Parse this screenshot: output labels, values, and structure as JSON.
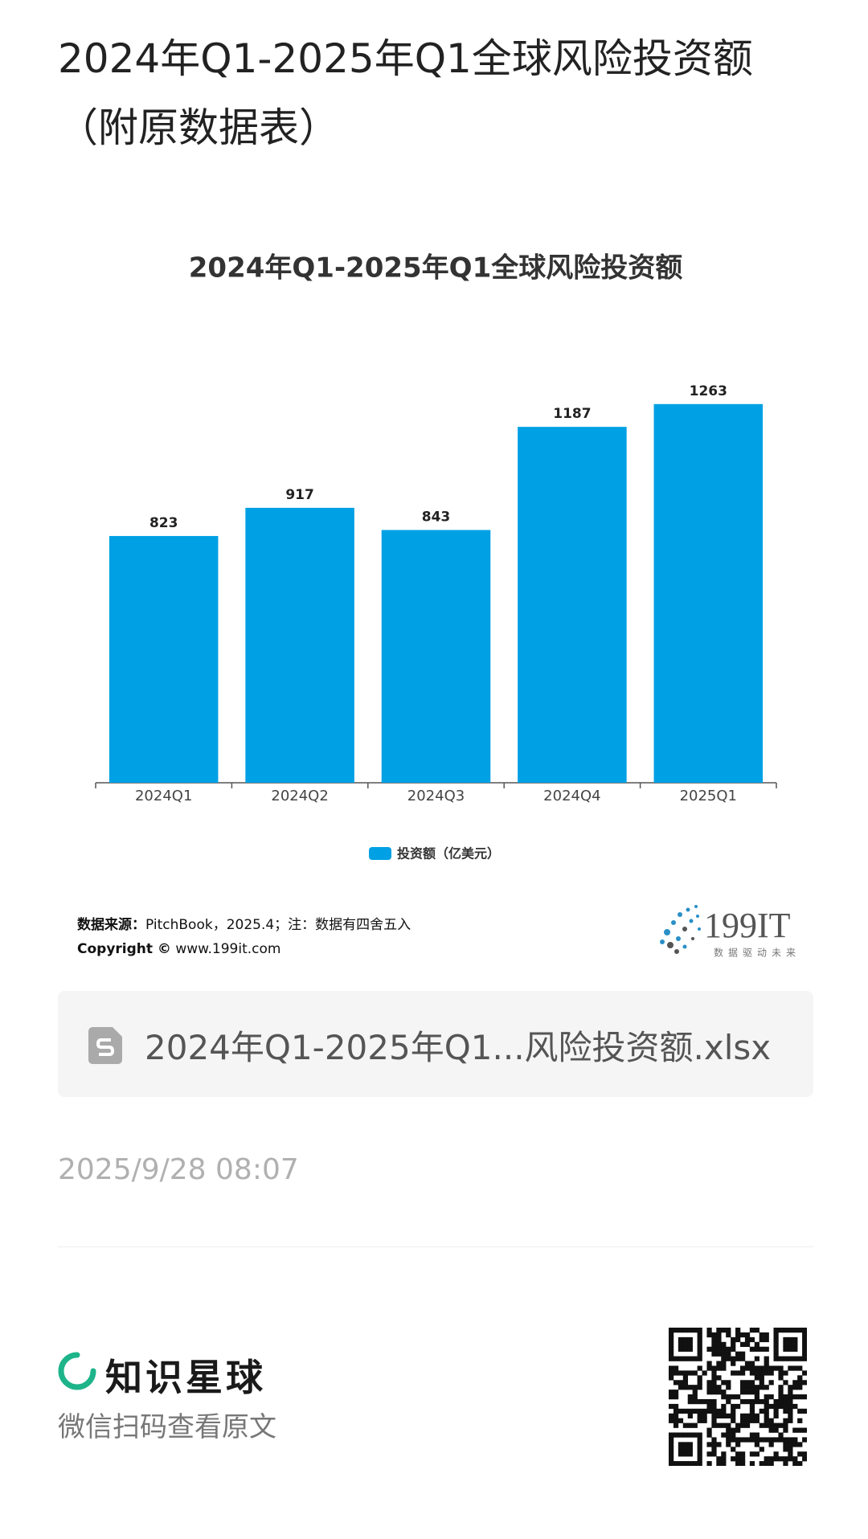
{
  "header": {
    "title": "2024年Q1-2025年Q1全球风险投资额（附原数据表）"
  },
  "chart_data": {
    "type": "bar",
    "title": "2024年Q1-2025年Q1全球风险投资额",
    "categories": [
      "2024Q1",
      "2024Q2",
      "2024Q3",
      "2024Q4",
      "2025Q1"
    ],
    "series": [
      {
        "name": "投资额（亿美元）",
        "color": "#00a0e4",
        "values": [
          823,
          917,
          843,
          1187,
          1263
        ]
      }
    ],
    "ylim": [
      0,
      1300
    ],
    "legend": "bottom"
  },
  "source": {
    "label": "数据来源：",
    "text": "PitchBook，2025.4；注：数据有四舍五入",
    "copyright_label": "Copyright ©",
    "copyright_text": "www.199it.com"
  },
  "logo": {
    "name": "199IT",
    "tagline": "数据驱动未来"
  },
  "attachment": {
    "filename": "2024年Q1-2025年Q1...风险投资额.xlsx"
  },
  "date": "2025/9/28 08:07",
  "brand": {
    "name": "知识星球",
    "subtitle": "微信扫码查看原文"
  }
}
